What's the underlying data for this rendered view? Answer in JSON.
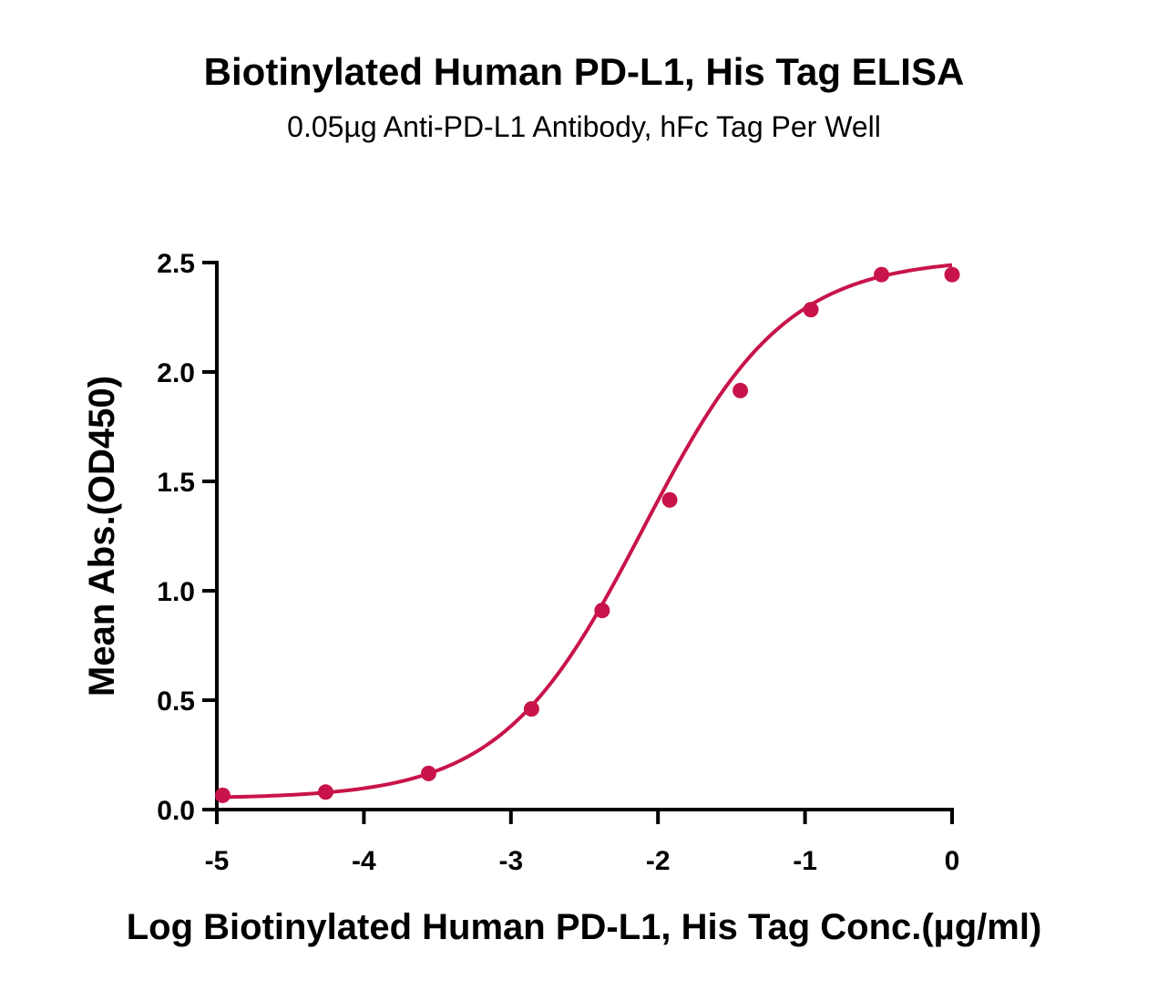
{
  "chart_data": {
    "type": "scatter",
    "title": "Biotinylated Human PD-L1, His Tag ELISA",
    "subtitle": "0.05µg Anti-PD-L1 Antibody, hFc Tag Per Well",
    "xlabel": "Log Biotinylated Human PD-L1, His Tag Conc.(µg/ml)",
    "ylabel": "Mean Abs.(OD450)",
    "xlim": [
      -5,
      0
    ],
    "ylim": [
      0,
      2.5
    ],
    "x_ticks": [
      "-5",
      "-4",
      "-3",
      "-2",
      "-1",
      "0"
    ],
    "y_ticks": [
      "0.0",
      "0.5",
      "1.0",
      "1.5",
      "2.0",
      "2.5"
    ],
    "grid": false,
    "color": "#c8144a",
    "series": [
      {
        "x": [
          -4.96,
          -4.26,
          -3.56,
          -2.86,
          -2.38,
          -1.92,
          -1.44,
          -0.96,
          -0.48,
          0.0
        ],
        "y": [
          0.065,
          0.08,
          0.165,
          0.46,
          0.91,
          1.415,
          1.915,
          2.285,
          2.445,
          2.445
        ]
      }
    ],
    "fit_curve": {
      "model": "4PL",
      "bottom": 0.05,
      "top": 2.52,
      "log_ec50": -2.1,
      "hill_slope": 0.9
    }
  }
}
